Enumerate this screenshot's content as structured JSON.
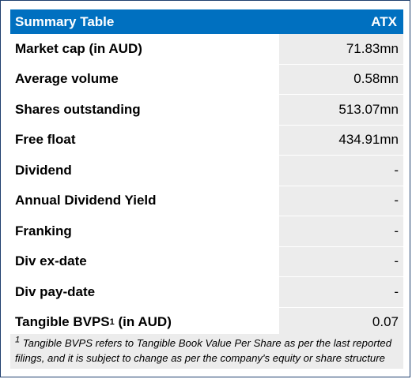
{
  "header": {
    "title": "Summary Table",
    "ticker": "ATX"
  },
  "rows": [
    {
      "label": "Market cap (in AUD)",
      "value": "71.83mn"
    },
    {
      "label": "Average volume",
      "value": "0.58mn"
    },
    {
      "label": "Shares outstanding",
      "value": "513.07mn"
    },
    {
      "label": "Free float",
      "value": "434.91mn"
    },
    {
      "label": "Dividend",
      "value": "-"
    },
    {
      "label": "Annual Dividend Yield",
      "value": "-"
    },
    {
      "label": "Franking",
      "value": "-"
    },
    {
      "label": "Div ex-date",
      "value": "-"
    },
    {
      "label": "Div pay-date",
      "value": "-"
    },
    {
      "label": "Tangible BVPS",
      "label_sup": "1",
      "label_suffix": " (in AUD)",
      "value": "0.07"
    }
  ],
  "footnote": {
    "marker": "1",
    "text": "Tangible BVPS refers to Tangible Book Value Per Share as per the last reported filings, and it is subject to change as per the company's equity or share structure"
  }
}
